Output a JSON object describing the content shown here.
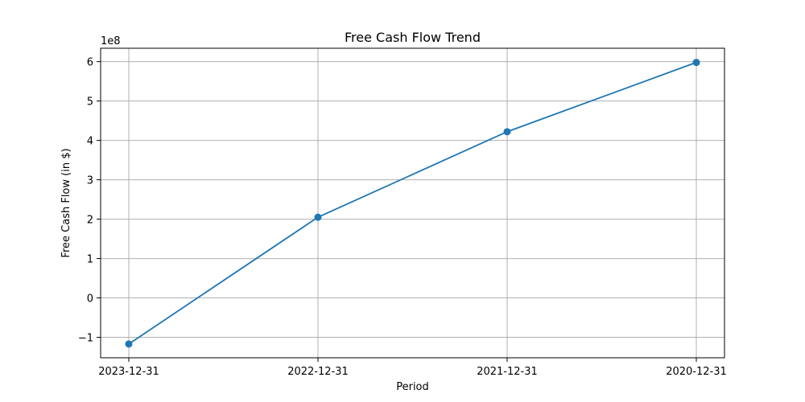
{
  "chart_data": {
    "type": "line",
    "title": "Free Cash Flow Trend",
    "xlabel": "Period",
    "ylabel": "Free Cash Flow (in $)",
    "y_offset_label": "1e8",
    "categories": [
      "2023-12-31",
      "2022-12-31",
      "2021-12-31",
      "2020-12-31"
    ],
    "series": [
      {
        "values": [
          -117000000,
          205000000,
          422000000,
          598000000
        ]
      }
    ],
    "ylim": [
      -1.52,
      6.34
    ],
    "y_scale": 100000000,
    "y_ticks": [
      -1,
      0,
      1,
      2,
      3,
      4,
      5,
      6
    ],
    "y_tick_labels": [
      "−1",
      "0",
      "1",
      "2",
      "3",
      "4",
      "5",
      "6"
    ],
    "grid": true,
    "marker": "circle",
    "colors": {
      "line": "#1f77b4",
      "grid": "#b0b0b0",
      "axis": "#000000"
    }
  }
}
